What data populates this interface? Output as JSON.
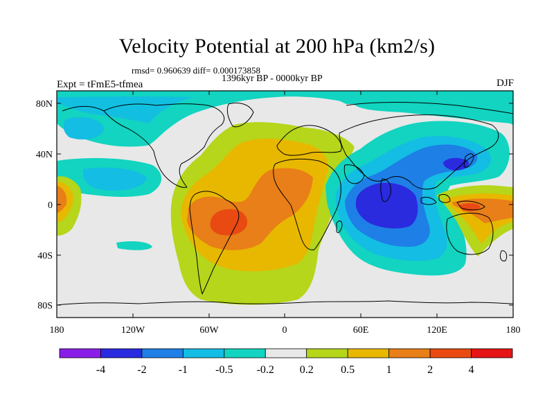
{
  "title": "Velocity Potential at 200 hPa (km2/s)",
  "stats_line": "rmsd= 0.960639 diff= 0.000173858",
  "period": "1396kyr BP - 0000kyr BP",
  "experiment": "Expt = tFmE5-tfmea",
  "season": "DJF",
  "map": {
    "type": "contour-fill map",
    "projection": "equirectangular",
    "lon_range": [
      -180,
      180
    ],
    "lat_range": [
      -90,
      90
    ],
    "x_ticks": [
      "180",
      "120W",
      "60W",
      "0",
      "60E",
      "120E",
      "180"
    ],
    "y_ticks": [
      "80N",
      "40N",
      "0",
      "40S",
      "80S"
    ]
  },
  "colorbar": {
    "levels": [
      "-4",
      "-2",
      "-1",
      "-0.5",
      "-0.2",
      "0.2",
      "0.5",
      "1",
      "2",
      "4"
    ],
    "colors": [
      "#8a1ee8",
      "#2a2adf",
      "#1e7fe6",
      "#14bde3",
      "#12d4c0",
      "#e8e8e8",
      "#b5d61a",
      "#e8b800",
      "#e87f18",
      "#e84a12",
      "#e61414"
    ]
  }
}
